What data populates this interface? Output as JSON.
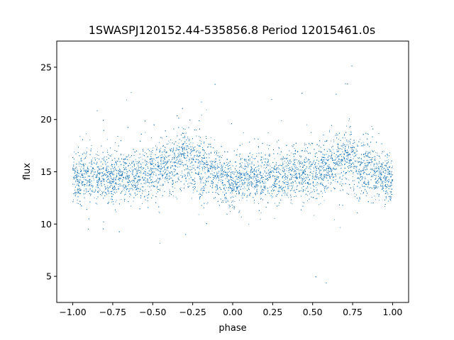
{
  "chart_data": {
    "type": "scatter",
    "title": "1SWASPJ120152.44-535856.8 Period 12015461.0s",
    "xlabel": "phase",
    "ylabel": "flux",
    "xlim": [
      -1.1,
      1.1
    ],
    "ylim": [
      2.5,
      27.5
    ],
    "xticks": [
      -1.0,
      -0.75,
      -0.5,
      -0.25,
      0.0,
      0.25,
      0.5,
      0.75,
      1.0
    ],
    "xtick_labels": [
      "−1.00",
      "−0.75",
      "−0.50",
      "−0.25",
      "0.00",
      "0.25",
      "0.50",
      "0.75",
      "1.00"
    ],
    "yticks": [
      5,
      10,
      15,
      20,
      25
    ],
    "ytick_labels": [
      "5",
      "10",
      "15",
      "20",
      "25"
    ],
    "grid": false,
    "marker_color": "#1f77b4",
    "series": [
      {
        "x_range": [
          -1.0,
          1.0
        ],
        "point_count": 12000,
        "envelope_phase": [
          -1.0,
          -0.75,
          -0.5,
          -0.4,
          -0.3,
          -0.2,
          -0.1,
          0.0,
          0.1,
          0.2,
          0.25,
          0.5,
          0.6,
          0.7,
          0.8,
          0.9,
          1.0
        ],
        "median_flux": [
          14.5,
          14.5,
          15.0,
          15.5,
          16.5,
          15.5,
          14.8,
          14.0,
          14.5,
          14.5,
          14.5,
          15.0,
          15.5,
          16.5,
          15.5,
          14.8,
          14.0
        ],
        "typical_spread": [
          2.0,
          2.0,
          2.0,
          2.2,
          2.5,
          2.5,
          2.0,
          2.0,
          2.0,
          2.0,
          2.0,
          2.0,
          2.2,
          2.5,
          2.5,
          2.0,
          2.0
        ],
        "flux_min": 3.5,
        "flux_max": 26.5
      }
    ]
  }
}
